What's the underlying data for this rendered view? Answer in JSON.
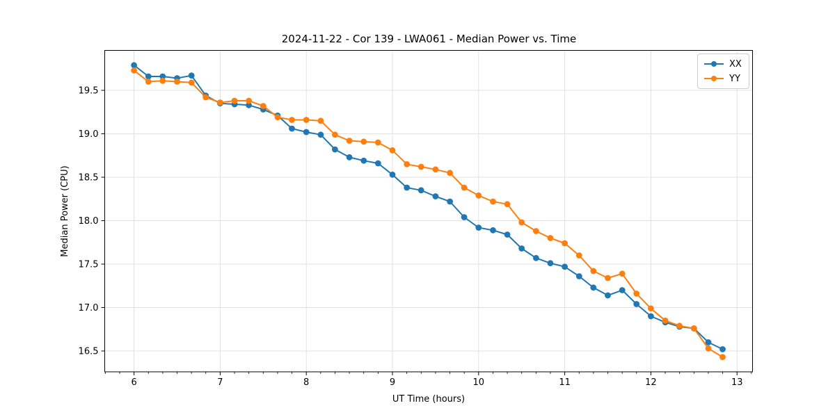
{
  "chart_data": {
    "type": "line",
    "title": "2024-11-22 - Cor 139 - LWA061 - Median Power vs. Time",
    "xlabel": "UT Time (hours)",
    "ylabel": "Median Power (CPU)",
    "xlim": [
      5.66,
      13.18
    ],
    "ylim": [
      16.26,
      19.96
    ],
    "grid": true,
    "legend_position": "upper right",
    "marker": "circle",
    "xtick_values": [
      6,
      7,
      8,
      9,
      10,
      11,
      12,
      13
    ],
    "xtick_labels": [
      "6",
      "7",
      "8",
      "9",
      "10",
      "11",
      "12",
      "13"
    ],
    "x_minor_divisions": 6,
    "ytick_values": [
      16.5,
      17.0,
      17.5,
      18.0,
      18.5,
      19.0,
      19.5
    ],
    "ytick_labels": [
      "16.5",
      "17.0",
      "17.5",
      "18.0",
      "18.5",
      "19.0",
      "19.5"
    ],
    "x": [
      6.0,
      6.167,
      6.333,
      6.5,
      6.667,
      6.833,
      7.0,
      7.167,
      7.333,
      7.5,
      7.667,
      7.833,
      8.0,
      8.167,
      8.333,
      8.5,
      8.667,
      8.833,
      9.0,
      9.167,
      9.333,
      9.5,
      9.667,
      9.833,
      10.0,
      10.167,
      10.333,
      10.5,
      10.667,
      10.833,
      11.0,
      11.167,
      11.333,
      11.5,
      11.667,
      11.833,
      12.0,
      12.167,
      12.333,
      12.5,
      12.667,
      12.833
    ],
    "series": [
      {
        "name": "XX",
        "color": "#1f77b4",
        "values": [
          19.79,
          19.66,
          19.66,
          19.64,
          19.67,
          19.44,
          19.35,
          19.34,
          19.33,
          19.28,
          19.21,
          19.06,
          19.02,
          18.99,
          18.82,
          18.73,
          18.69,
          18.66,
          18.53,
          18.38,
          18.35,
          18.28,
          18.22,
          18.04,
          17.92,
          17.89,
          17.84,
          17.68,
          17.57,
          17.51,
          17.47,
          17.36,
          17.23,
          17.14,
          17.2,
          17.04,
          16.9,
          16.83,
          16.78,
          16.76,
          16.6,
          16.52
        ]
      },
      {
        "name": "YY",
        "color": "#ff7f0e",
        "values": [
          19.73,
          19.6,
          19.61,
          19.6,
          19.59,
          19.42,
          19.36,
          19.38,
          19.38,
          19.32,
          19.19,
          19.16,
          19.16,
          19.15,
          18.99,
          18.92,
          18.91,
          18.9,
          18.81,
          18.65,
          18.62,
          18.59,
          18.55,
          18.38,
          18.29,
          18.22,
          18.19,
          17.98,
          17.88,
          17.8,
          17.74,
          17.6,
          17.42,
          17.34,
          17.39,
          17.16,
          16.99,
          16.85,
          16.79,
          16.76,
          16.53,
          16.43
        ]
      }
    ]
  },
  "colors": {
    "grid": "#e0e0e0",
    "spine": "#000000",
    "tick": "#000000",
    "text": "#000000",
    "background": "#ffffff"
  }
}
